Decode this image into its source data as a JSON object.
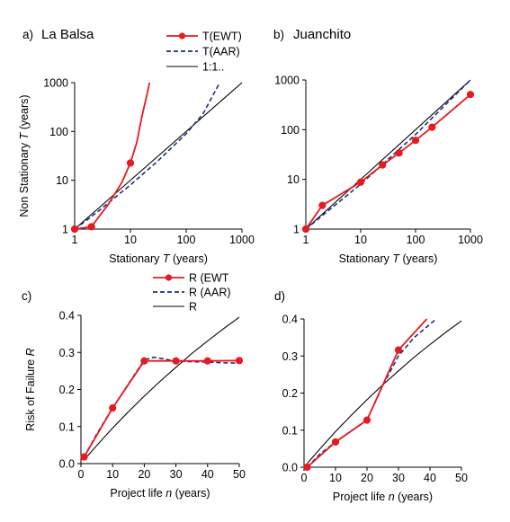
{
  "chart_data": [
    {
      "panel_label": "a)",
      "title": "La Balsa",
      "type": "line",
      "xlabel": "Stationary T (years)",
      "ylabel": "Non Stationary T (years)",
      "xscale": "log",
      "yscale": "log",
      "xlim": [
        1,
        1000
      ],
      "ylim": [
        1,
        1000
      ],
      "xticks": [
        "1",
        "10",
        "100",
        "1000"
      ],
      "yticks": [
        "1",
        "10",
        "100",
        "1000"
      ],
      "legend": [
        "T(EWT)",
        "T(AAR)",
        "1:1.."
      ],
      "series": [
        {
          "name": "T(EWT)",
          "color": "#e8191f",
          "style": "solid-markers",
          "markers": [
            [
              1,
              1
            ],
            [
              2,
              1.12
            ],
            [
              10,
              22.6
            ]
          ],
          "x": [
            1,
            2,
            4,
            7,
            10,
            13,
            16,
            20,
            22
          ],
          "y": [
            1,
            1.12,
            3.2,
            9,
            22.6,
            60,
            200,
            600,
            1000
          ]
        },
        {
          "name": "T(AAR)",
          "color": "#1f2f7a",
          "style": "dashed",
          "x": [
            1,
            2,
            5,
            10,
            30,
            100,
            200,
            400
          ],
          "y": [
            1,
            1.8,
            4.2,
            8,
            24,
            90,
            230,
            1000
          ]
        },
        {
          "name": "1:1..",
          "color": "#000000",
          "style": "solid",
          "x": [
            1,
            1000
          ],
          "y": [
            1,
            1000
          ]
        }
      ]
    },
    {
      "panel_label": "b)",
      "title": "Juanchito",
      "type": "line",
      "xlabel": "Stationary T (years)",
      "ylabel": "",
      "xscale": "log",
      "yscale": "log",
      "xlim": [
        1,
        1000
      ],
      "ylim": [
        1,
        1000
      ],
      "xticks": [
        "1",
        "10",
        "100",
        "1000"
      ],
      "yticks": [
        "1",
        "10",
        "100",
        "1000"
      ],
      "series": [
        {
          "name": "T(EWT)",
          "color": "#e8191f",
          "style": "solid-markers",
          "markers": [
            [
              1,
              1
            ],
            [
              2,
              3
            ],
            [
              10,
              8.8
            ],
            [
              25,
              19.5
            ],
            [
              50,
              34
            ],
            [
              100,
              61
            ],
            [
              200,
              112
            ],
            [
              1000,
              510
            ]
          ],
          "x": [
            1,
            2,
            10,
            25,
            50,
            100,
            200,
            1000
          ],
          "y": [
            1,
            3,
            8.8,
            19.5,
            34,
            61,
            112,
            510
          ]
        },
        {
          "name": "T(AAR)",
          "color": "#1f2f7a",
          "style": "dashed",
          "x": [
            1,
            10,
            100,
            1000
          ],
          "y": [
            1,
            8,
            80,
            1000
          ]
        },
        {
          "name": "1:1..",
          "color": "#000000",
          "style": "solid",
          "x": [
            1,
            1000
          ],
          "y": [
            1,
            1000
          ]
        }
      ]
    },
    {
      "panel_label": "c)",
      "title": "",
      "type": "line",
      "xlabel": "Project life n (years)",
      "ylabel": "Risk of Failure R",
      "xscale": "linear",
      "yscale": "linear",
      "xlim": [
        0,
        50
      ],
      "ylim": [
        0,
        0.4
      ],
      "xticks": [
        "0",
        "10",
        "20",
        "30",
        "40",
        "50"
      ],
      "yticks": [
        "0.0",
        "0.1",
        "0.2",
        "0.3",
        "0.4"
      ],
      "legend": [
        "R (EWT",
        "R (AAR)",
        "R"
      ],
      "series": [
        {
          "name": "R (EWT",
          "color": "#e8191f",
          "style": "solid-markers",
          "markers": [
            [
              1,
              0.018
            ],
            [
              10,
              0.15
            ],
            [
              20,
              0.277
            ],
            [
              30,
              0.277
            ],
            [
              40,
              0.277
            ],
            [
              50,
              0.278
            ]
          ],
          "x": [
            1,
            10,
            20,
            30,
            40,
            50
          ],
          "y": [
            0.018,
            0.15,
            0.277,
            0.277,
            0.277,
            0.278
          ]
        },
        {
          "name": "R (AAR)",
          "color": "#1f2f7a",
          "style": "dashed",
          "x": [
            1,
            5,
            10,
            15,
            20,
            23,
            26,
            30,
            35,
            40,
            45,
            50
          ],
          "y": [
            0.018,
            0.08,
            0.15,
            0.215,
            0.28,
            0.287,
            0.283,
            0.276,
            0.275,
            0.274,
            0.272,
            0.271
          ]
        },
        {
          "name": "R",
          "color": "#000000",
          "style": "solid",
          "x": [
            1,
            5,
            10,
            15,
            20,
            25,
            30,
            35,
            40,
            45,
            50
          ],
          "y": [
            0.01,
            0.049,
            0.096,
            0.14,
            0.182,
            0.222,
            0.26,
            0.297,
            0.331,
            0.364,
            0.395
          ]
        }
      ]
    },
    {
      "panel_label": "d)",
      "title": "",
      "type": "line",
      "xlabel": "Project life n (years)",
      "ylabel": "",
      "xscale": "linear",
      "yscale": "linear",
      "xlim": [
        0,
        50
      ],
      "ylim": [
        0,
        0.4
      ],
      "xticks": [
        "0",
        "10",
        "20",
        "30",
        "40",
        "50"
      ],
      "yticks": [
        "0.0",
        "0.1",
        "0.2",
        "0.3",
        "0.4"
      ],
      "series": [
        {
          "name": "R (EWT",
          "color": "#e8191f",
          "style": "solid-markers",
          "markers": [
            [
              1,
              0
            ],
            [
              10,
              0.068
            ],
            [
              20,
              0.127
            ],
            [
              30,
              0.316
            ]
          ],
          "x": [
            1,
            10,
            20,
            30,
            39
          ],
          "y": [
            0,
            0.068,
            0.127,
            0.316,
            0.4
          ]
        },
        {
          "name": "R (AAR)",
          "color": "#1f2f7a",
          "style": "dashed",
          "x": [
            1,
            5,
            10,
            15,
            20,
            25,
            30,
            35,
            42
          ],
          "y": [
            0,
            0.035,
            0.068,
            0.098,
            0.127,
            0.22,
            0.3,
            0.35,
            0.4
          ]
        },
        {
          "name": "R",
          "color": "#000000",
          "style": "solid",
          "x": [
            1,
            5,
            10,
            15,
            20,
            25,
            30,
            35,
            40,
            45,
            50
          ],
          "y": [
            0.01,
            0.049,
            0.096,
            0.14,
            0.182,
            0.222,
            0.26,
            0.297,
            0.331,
            0.364,
            0.395
          ]
        }
      ]
    }
  ]
}
